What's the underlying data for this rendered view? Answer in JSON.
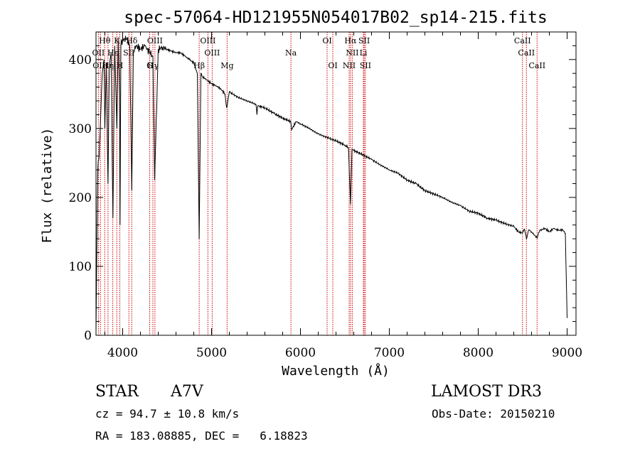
{
  "chart_data": {
    "type": "line",
    "title": "spec-57064-HD121955N054017B02_sp14-215.fits",
    "xlabel": "Wavelength (Å)",
    "ylabel": "Flux (relative)",
    "xlim": [
      3700,
      9100
    ],
    "ylim": [
      0,
      440
    ],
    "x_ticks": [
      4000,
      5000,
      6000,
      7000,
      8000,
      9000
    ],
    "x_tick_labels": [
      "4000",
      "5000",
      "6000",
      "7000",
      "8000",
      "9000"
    ],
    "y_ticks": [
      0,
      100,
      200,
      300,
      400
    ],
    "y_tick_labels": [
      "0",
      "100",
      "200",
      "300",
      "400"
    ],
    "series": [
      {
        "name": "spectrum",
        "x": [
          3700,
          3710,
          3720,
          3735,
          3750,
          3770,
          3790,
          3800,
          3815,
          3835,
          3850,
          3870,
          3890,
          3910,
          3935,
          3950,
          3965,
          3970,
          3980,
          4000,
          4020,
          4050,
          4080,
          4102,
          4120,
          4150,
          4200,
          4250,
          4300,
          4340,
          4360,
          4400,
          4450,
          4500,
          4550,
          4600,
          4650,
          4700,
          4750,
          4800,
          4840,
          4861,
          4880,
          4900,
          4950,
          5000,
          5050,
          5100,
          5150,
          5170,
          5200,
          5300,
          5400,
          5500,
          5510,
          5520,
          5600,
          5700,
          5800,
          5890,
          5900,
          5950,
          6000,
          6100,
          6200,
          6300,
          6400,
          6500,
          6540,
          6563,
          6580,
          6600,
          6700,
          6800,
          6900,
          7000,
          7100,
          7200,
          7300,
          7400,
          7500,
          7600,
          7700,
          7800,
          7900,
          8000,
          8100,
          8200,
          8300,
          8400,
          8450,
          8498,
          8520,
          8542,
          8570,
          8600,
          8662,
          8690,
          8750,
          8800,
          8850,
          8900,
          8950,
          8980,
          9000
        ],
        "y": [
          5,
          140,
          240,
          260,
          310,
          380,
          400,
          300,
          395,
          220,
          390,
          410,
          170,
          420,
          300,
          430,
          350,
          160,
          420,
          430,
          430,
          430,
          420,
          210,
          410,
          420,
          415,
          420,
          410,
          405,
          225,
          415,
          418,
          415,
          412,
          410,
          410,
          405,
          400,
          395,
          380,
          140,
          380,
          375,
          370,
          365,
          362,
          358,
          350,
          330,
          353,
          345,
          340,
          335,
          320,
          333,
          330,
          322,
          315,
          310,
          298,
          310,
          307,
          300,
          292,
          287,
          282,
          276,
          272,
          190,
          270,
          268,
          262,
          255,
          247,
          240,
          235,
          225,
          220,
          210,
          205,
          200,
          193,
          188,
          180,
          177,
          170,
          167,
          162,
          158,
          150,
          148,
          154,
          140,
          153,
          150,
          141,
          152,
          155,
          150,
          155,
          152,
          153,
          148,
          25
        ]
      }
    ],
    "lines": [
      {
        "label": "Hθ",
        "x": 3798,
        "row": 0
      },
      {
        "label": "OII",
        "x": 3727,
        "row": 1
      },
      {
        "label": "OIII",
        "x": 3750,
        "row": 2
      },
      {
        "label": "Hη",
        "x": 3835,
        "row": 2
      },
      {
        "label": "Hε",
        "x": 3889,
        "row": 1
      },
      {
        "label": "K",
        "x": 3934,
        "row": 0
      },
      {
        "label": "SII",
        "x": 4070,
        "row": 1
      },
      {
        "label": "H",
        "x": 3968,
        "row": 2
      },
      {
        "label": "Hδ",
        "x": 4102,
        "row": 0
      },
      {
        "label": "OIII",
        "x": 4363,
        "row": 0
      },
      {
        "label": "G",
        "x": 4304,
        "row": 2
      },
      {
        "label": "Hγ",
        "x": 4340,
        "row": 2
      },
      {
        "label": "OIII",
        "x": 4959,
        "row": 0
      },
      {
        "label": "OIII",
        "x": 5007,
        "row": 1
      },
      {
        "label": "Hβ",
        "x": 4861,
        "row": 2
      },
      {
        "label": "Mg",
        "x": 5175,
        "row": 2
      },
      {
        "label": "Na",
        "x": 5893,
        "row": 1
      },
      {
        "label": "OI",
        "x": 6300,
        "row": 0
      },
      {
        "label": "OI",
        "x": 6364,
        "row": 2
      },
      {
        "label": "Hα",
        "x": 6563,
        "row": 0
      },
      {
        "label": "SII",
        "x": 6717,
        "row": 0
      },
      {
        "label": "NII",
        "x": 6583,
        "row": 1
      },
      {
        "label": "Li",
        "x": 6708,
        "row": 1
      },
      {
        "label": "NII",
        "x": 6548,
        "row": 2
      },
      {
        "label": "SII",
        "x": 6731,
        "row": 2
      },
      {
        "label": "CaII",
        "x": 8498,
        "row": 0
      },
      {
        "label": "CaII",
        "x": 8542,
        "row": 1
      },
      {
        "label": "CaII",
        "x": 8662,
        "row": 2
      }
    ]
  },
  "info": {
    "class_label": "STAR",
    "subclass": "A7V",
    "redshift_line": "cz = 94.7 ± 10.8 km/s",
    "coords_line": "RA = 183.08885, DEC =   6.18823",
    "survey": "LAMOST DR3",
    "obs_date": "Obs-Date: 20150210"
  },
  "colors": {
    "line_marker": "#cc0000",
    "spectrum": "#000000",
    "axis": "#000000"
  }
}
